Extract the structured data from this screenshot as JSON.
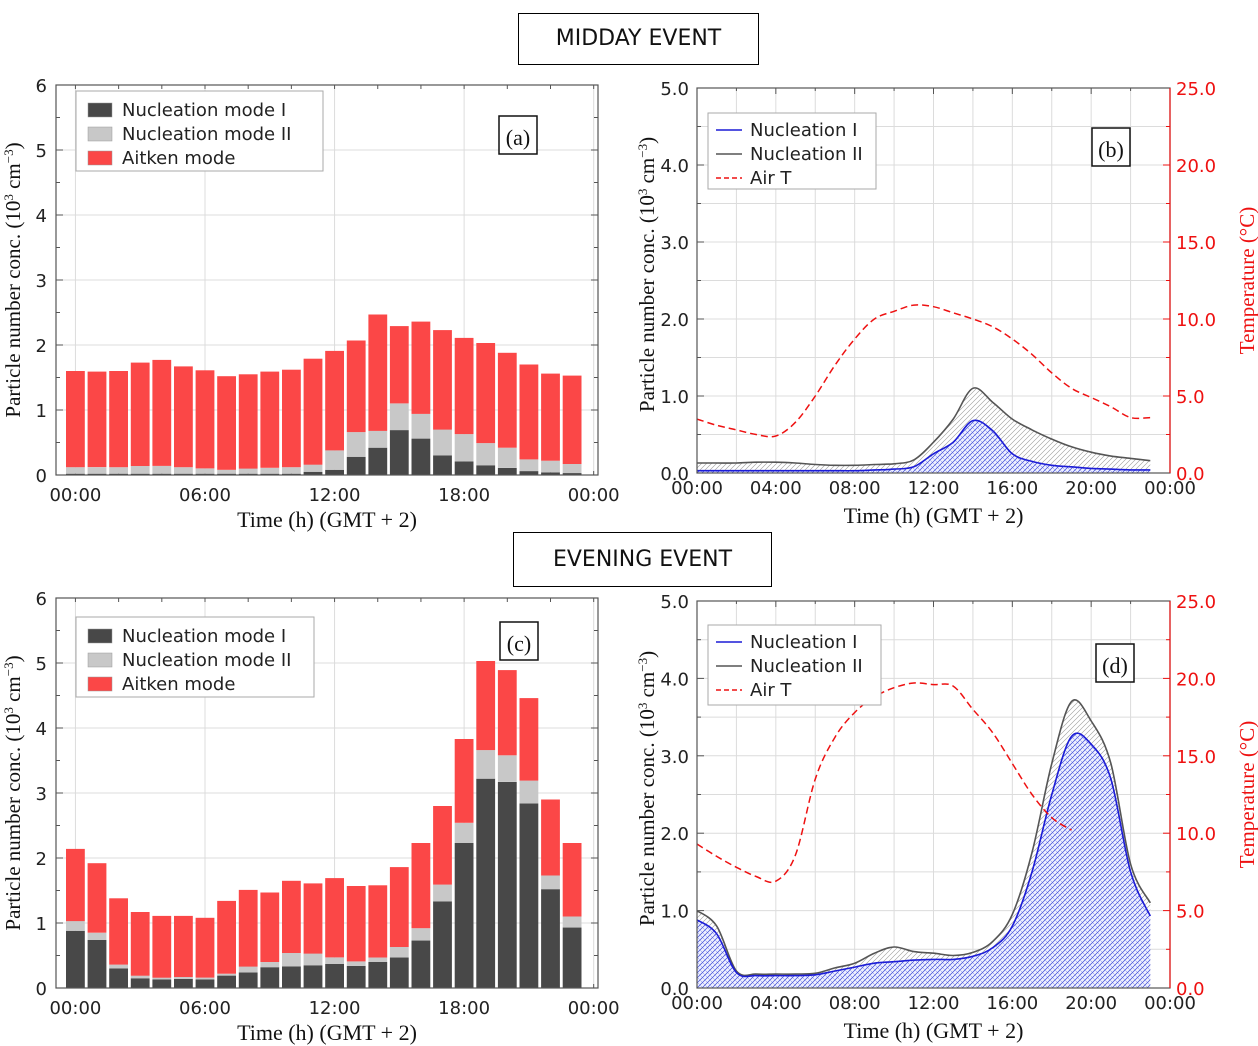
{
  "headings": {
    "midday": "MIDDAY EVENT",
    "evening": "EVENING EVENT"
  },
  "colors": {
    "nuc1": "#484848",
    "nuc2": "#c8c8c8",
    "aitken": "#fb4747",
    "line_nuc1": "#1c1cd6",
    "line_nuc2": "#555555",
    "airT": "#ee1111"
  },
  "chart_data": [
    {
      "type": "bar",
      "panel_label": "(a)",
      "stacked": true,
      "xlabel": "Time (h) (GMT + 2)",
      "ylabel": "Particle number conc. (10³ cm⁻³)",
      "ylim": [
        0,
        6
      ],
      "yticks": [
        "0",
        "1",
        "2",
        "3",
        "4",
        "5",
        "6"
      ],
      "xticks": [
        "00:00",
        "06:00",
        "12:00",
        "18:00",
        "00:00"
      ],
      "categories": [
        "00:00",
        "01:00",
        "02:00",
        "03:00",
        "04:00",
        "05:00",
        "06:00",
        "07:00",
        "08:00",
        "09:00",
        "10:00",
        "11:00",
        "12:00",
        "13:00",
        "14:00",
        "15:00",
        "16:00",
        "17:00",
        "18:00",
        "19:00",
        "20:00",
        "21:00",
        "22:00",
        "23:00"
      ],
      "legend_position": "top-left",
      "grid": true,
      "series": [
        {
          "name": "Nucleation mode I",
          "values": [
            0.02,
            0.02,
            0.02,
            0.02,
            0.02,
            0.02,
            0.02,
            0.02,
            0.02,
            0.02,
            0.02,
            0.05,
            0.08,
            0.28,
            0.42,
            0.69,
            0.56,
            0.3,
            0.21,
            0.15,
            0.11,
            0.06,
            0.04,
            0.03
          ]
        },
        {
          "name": "Nucleation mode II",
          "values": [
            0.1,
            0.1,
            0.1,
            0.12,
            0.12,
            0.1,
            0.08,
            0.06,
            0.08,
            0.09,
            0.1,
            0.11,
            0.3,
            0.38,
            0.26,
            0.41,
            0.38,
            0.4,
            0.42,
            0.34,
            0.31,
            0.18,
            0.18,
            0.14
          ]
        },
        {
          "name": "Aitken mode",
          "values": [
            1.48,
            1.47,
            1.48,
            1.59,
            1.63,
            1.55,
            1.51,
            1.44,
            1.45,
            1.48,
            1.5,
            1.63,
            1.53,
            1.41,
            1.79,
            1.19,
            1.42,
            1.53,
            1.48,
            1.54,
            1.46,
            1.46,
            1.34,
            1.36
          ]
        }
      ]
    },
    {
      "type": "line",
      "panel_label": "(b)",
      "xlabel": "Time (h) (GMT + 2)",
      "ylabel": "Particle number conc. (10³ cm⁻³)",
      "ylabel_right": "Temperature (°C)",
      "ylim": [
        0,
        5
      ],
      "ylim_right": [
        0,
        25
      ],
      "yticks": [
        "0.0",
        "1.0",
        "2.0",
        "3.0",
        "4.0",
        "5.0"
      ],
      "yticks_right": [
        "0.0",
        "5.0",
        "10.0",
        "15.0",
        "20.0",
        "25.0"
      ],
      "xticks": [
        "00:00",
        "04:00",
        "08:00",
        "12:00",
        "16:00",
        "20:00",
        "00:00"
      ],
      "legend_position": "top-left",
      "grid": true,
      "x": [
        0,
        1,
        2,
        3,
        4,
        5,
        6,
        7,
        8,
        9,
        10,
        11,
        12,
        13,
        14,
        15,
        16,
        17,
        18,
        19,
        20,
        21,
        22,
        23
      ],
      "series": [
        {
          "name": "Nucleation I",
          "axis": "left",
          "values": [
            0.03,
            0.03,
            0.03,
            0.03,
            0.03,
            0.03,
            0.03,
            0.03,
            0.03,
            0.04,
            0.05,
            0.08,
            0.25,
            0.4,
            0.68,
            0.55,
            0.25,
            0.15,
            0.1,
            0.08,
            0.06,
            0.05,
            0.04,
            0.04
          ]
        },
        {
          "name": "Nucleation II",
          "axis": "left",
          "values": [
            0.13,
            0.13,
            0.13,
            0.14,
            0.14,
            0.13,
            0.11,
            0.1,
            0.1,
            0.11,
            0.12,
            0.17,
            0.4,
            0.7,
            1.1,
            0.92,
            0.7,
            0.56,
            0.44,
            0.34,
            0.27,
            0.22,
            0.19,
            0.16
          ]
        },
        {
          "name": "Air T",
          "axis": "right",
          "values": [
            3.5,
            3.1,
            2.8,
            2.5,
            2.4,
            3.3,
            5.0,
            7.0,
            8.7,
            10.0,
            10.5,
            10.9,
            10.8,
            10.4,
            10.0,
            9.5,
            8.7,
            7.7,
            6.5,
            5.5,
            4.9,
            4.3,
            3.6,
            3.6
          ]
        }
      ]
    },
    {
      "type": "bar",
      "panel_label": "(c)",
      "stacked": true,
      "xlabel": "Time (h) (GMT + 2)",
      "ylabel": "Particle number conc. (10³ cm⁻³)",
      "ylim": [
        0,
        6
      ],
      "yticks": [
        "0",
        "1",
        "2",
        "3",
        "4",
        "5",
        "6"
      ],
      "xticks": [
        "00:00",
        "06:00",
        "12:00",
        "18:00",
        "00:00"
      ],
      "categories": [
        "00:00",
        "01:00",
        "02:00",
        "03:00",
        "04:00",
        "05:00",
        "06:00",
        "07:00",
        "08:00",
        "09:00",
        "10:00",
        "11:00",
        "12:00",
        "13:00",
        "14:00",
        "15:00",
        "16:00",
        "17:00",
        "18:00",
        "19:00",
        "20:00",
        "21:00",
        "22:00",
        "23:00"
      ],
      "legend_position": "top-left",
      "grid": true,
      "series": [
        {
          "name": "Nucleation mode I",
          "values": [
            0.88,
            0.74,
            0.3,
            0.15,
            0.13,
            0.14,
            0.13,
            0.19,
            0.24,
            0.32,
            0.33,
            0.35,
            0.37,
            0.34,
            0.4,
            0.47,
            0.73,
            1.33,
            2.23,
            3.22,
            3.17,
            2.84,
            1.52,
            0.93
          ]
        },
        {
          "name": "Nucleation mode II",
          "values": [
            0.15,
            0.11,
            0.06,
            0.04,
            0.03,
            0.03,
            0.03,
            0.03,
            0.09,
            0.08,
            0.21,
            0.18,
            0.1,
            0.07,
            0.07,
            0.16,
            0.19,
            0.26,
            0.31,
            0.44,
            0.41,
            0.35,
            0.21,
            0.17
          ]
        },
        {
          "name": "Aitken mode",
          "values": [
            1.11,
            1.07,
            1.02,
            0.98,
            0.95,
            0.94,
            0.92,
            1.12,
            1.18,
            1.07,
            1.11,
            1.08,
            1.22,
            1.16,
            1.11,
            1.23,
            1.31,
            1.21,
            1.29,
            1.37,
            1.31,
            1.27,
            1.17,
            1.13
          ]
        }
      ]
    },
    {
      "type": "line",
      "panel_label": "(d)",
      "xlabel": "Time (h) (GMT + 2)",
      "ylabel": "Particle number conc. (10³ cm⁻³)",
      "ylabel_right": "Temperature (°C)",
      "ylim": [
        0,
        5
      ],
      "ylim_right": [
        0,
        25
      ],
      "yticks": [
        "0.0",
        "1.0",
        "2.0",
        "3.0",
        "4.0",
        "5.0"
      ],
      "yticks_right": [
        "0.0",
        "5.0",
        "10.0",
        "15.0",
        "20.0",
        "25.0"
      ],
      "xticks": [
        "00:00",
        "04:00",
        "08:00",
        "12:00",
        "16:00",
        "20:00",
        "00:00"
      ],
      "legend_position": "top-left",
      "grid": true,
      "x": [
        0,
        1,
        2,
        3,
        4,
        5,
        6,
        7,
        8,
        9,
        10,
        11,
        12,
        13,
        14,
        15,
        16,
        17,
        18,
        19,
        20,
        21,
        22,
        23
      ],
      "series": [
        {
          "name": "Nucleation I",
          "axis": "left",
          "values": [
            0.88,
            0.7,
            0.2,
            0.16,
            0.16,
            0.16,
            0.17,
            0.22,
            0.27,
            0.32,
            0.34,
            0.36,
            0.37,
            0.37,
            0.41,
            0.52,
            0.8,
            1.5,
            2.5,
            3.25,
            3.15,
            2.7,
            1.5,
            0.93
          ]
        },
        {
          "name": "Nucleation II",
          "axis": "left",
          "values": [
            1.0,
            0.8,
            0.22,
            0.18,
            0.18,
            0.18,
            0.19,
            0.26,
            0.32,
            0.45,
            0.53,
            0.47,
            0.45,
            0.42,
            0.46,
            0.6,
            0.95,
            1.75,
            2.9,
            3.7,
            3.45,
            2.9,
            1.6,
            1.1
          ]
        },
        {
          "name": "Air T",
          "axis": "right",
          "values": [
            9.3,
            8.5,
            7.8,
            7.2,
            6.9,
            8.6,
            13.5,
            16.2,
            17.8,
            18.8,
            19.4,
            19.7,
            19.6,
            19.5,
            18.0,
            16.5,
            14.5,
            12.5,
            11.0,
            10.2,
            null,
            null,
            null,
            null
          ]
        }
      ]
    }
  ]
}
